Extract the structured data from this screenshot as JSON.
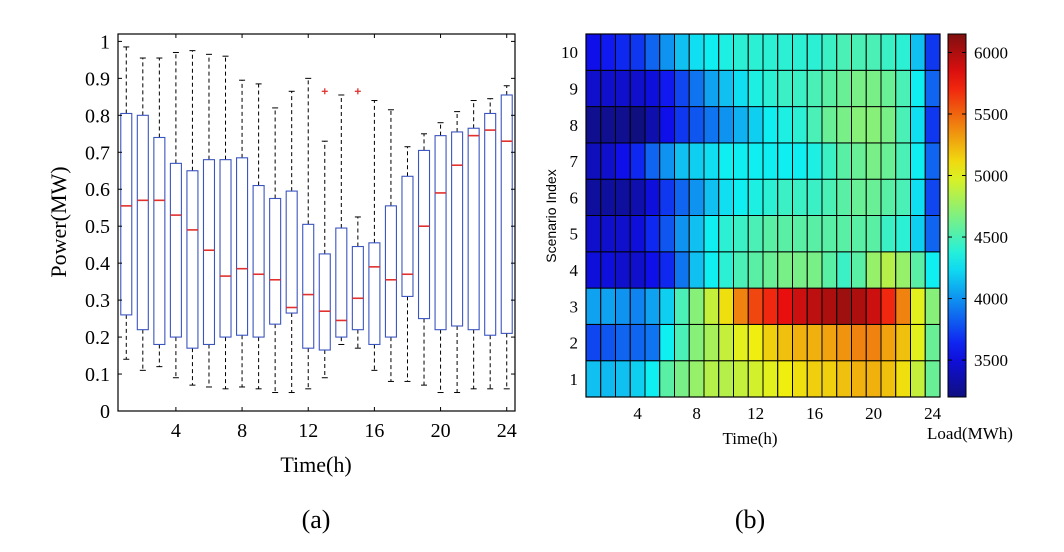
{
  "panels": {
    "a_label": "(a)",
    "b_label": "(b)"
  },
  "chart_data": [
    {
      "type": "box",
      "xlabel": "Time(h)",
      "ylabel": "Power(MW)",
      "xlim": [
        0.5,
        24.5
      ],
      "ylim": [
        0,
        1.02
      ],
      "xticks": [
        4,
        8,
        12,
        16,
        20,
        24
      ],
      "yticks": [
        0,
        0.1,
        0.2,
        0.3,
        0.4,
        0.5,
        0.6,
        0.7,
        0.8,
        0.9,
        1
      ],
      "ytick_labels": [
        "0",
        "0.1",
        "0.2",
        "0.3",
        "0.4",
        "0.5",
        "0.6",
        "0.7",
        "0.8",
        "0.9",
        "1"
      ],
      "box_color": "#3b55c0",
      "median_color": "#e0312f",
      "outlier_color": "#e0312f",
      "boxes": [
        {
          "x": 1,
          "whislo": 0.14,
          "q1": 0.26,
          "med": 0.555,
          "q3": 0.805,
          "whishi": 0.985
        },
        {
          "x": 2,
          "whislo": 0.11,
          "q1": 0.22,
          "med": 0.57,
          "q3": 0.8,
          "whishi": 0.955
        },
        {
          "x": 3,
          "whislo": 0.12,
          "q1": 0.18,
          "med": 0.57,
          "q3": 0.74,
          "whishi": 0.955
        },
        {
          "x": 4,
          "whislo": 0.09,
          "q1": 0.2,
          "med": 0.53,
          "q3": 0.67,
          "whishi": 0.97
        },
        {
          "x": 5,
          "whislo": 0.07,
          "q1": 0.17,
          "med": 0.49,
          "q3": 0.65,
          "whishi": 0.975
        },
        {
          "x": 6,
          "whislo": 0.065,
          "q1": 0.18,
          "med": 0.435,
          "q3": 0.68,
          "whishi": 0.965
        },
        {
          "x": 7,
          "whislo": 0.06,
          "q1": 0.2,
          "med": 0.365,
          "q3": 0.68,
          "whishi": 0.96
        },
        {
          "x": 8,
          "whislo": 0.065,
          "q1": 0.205,
          "med": 0.385,
          "q3": 0.685,
          "whishi": 0.895
        },
        {
          "x": 9,
          "whislo": 0.06,
          "q1": 0.2,
          "med": 0.37,
          "q3": 0.61,
          "whishi": 0.885
        },
        {
          "x": 10,
          "whislo": 0.05,
          "q1": 0.235,
          "med": 0.355,
          "q3": 0.575,
          "whishi": 0.82
        },
        {
          "x": 11,
          "whislo": 0.05,
          "q1": 0.265,
          "med": 0.28,
          "q3": 0.595,
          "whishi": 0.865
        },
        {
          "x": 12,
          "whislo": 0.06,
          "q1": 0.17,
          "med": 0.315,
          "q3": 0.505,
          "whishi": 0.9
        },
        {
          "x": 13,
          "whislo": 0.09,
          "q1": 0.165,
          "med": 0.27,
          "q3": 0.425,
          "whishi": 0.73,
          "outliers": [
            0.865
          ]
        },
        {
          "x": 14,
          "whislo": 0.18,
          "q1": 0.2,
          "med": 0.245,
          "q3": 0.495,
          "whishi": 0.855
        },
        {
          "x": 15,
          "whislo": 0.17,
          "q1": 0.22,
          "med": 0.305,
          "q3": 0.445,
          "whishi": 0.525,
          "outliers": [
            0.865
          ]
        },
        {
          "x": 16,
          "whislo": 0.11,
          "q1": 0.18,
          "med": 0.39,
          "q3": 0.455,
          "whishi": 0.84
        },
        {
          "x": 17,
          "whislo": 0.08,
          "q1": 0.2,
          "med": 0.355,
          "q3": 0.555,
          "whishi": 0.815
        },
        {
          "x": 18,
          "whislo": 0.08,
          "q1": 0.31,
          "med": 0.37,
          "q3": 0.635,
          "whishi": 0.715
        },
        {
          "x": 19,
          "whislo": 0.07,
          "q1": 0.25,
          "med": 0.5,
          "q3": 0.705,
          "whishi": 0.75
        },
        {
          "x": 20,
          "whislo": 0.05,
          "q1": 0.22,
          "med": 0.59,
          "q3": 0.745,
          "whishi": 0.78
        },
        {
          "x": 21,
          "whislo": 0.05,
          "q1": 0.23,
          "med": 0.665,
          "q3": 0.755,
          "whishi": 0.81
        },
        {
          "x": 22,
          "whislo": 0.06,
          "q1": 0.22,
          "med": 0.745,
          "q3": 0.765,
          "whishi": 0.84
        },
        {
          "x": 23,
          "whislo": 0.06,
          "q1": 0.205,
          "med": 0.76,
          "q3": 0.805,
          "whishi": 0.845
        },
        {
          "x": 24,
          "whislo": 0.06,
          "q1": 0.21,
          "med": 0.73,
          "q3": 0.855,
          "whishi": 0.88
        }
      ]
    },
    {
      "type": "heatmap",
      "xlabel": "Time(h)",
      "ylabel": "Scenario Index",
      "colorbar_label": "Load(MWh)",
      "xticks": [
        4,
        8,
        12,
        16,
        20,
        24
      ],
      "yticks": [
        1,
        2,
        3,
        4,
        5,
        6,
        7,
        8,
        9,
        10
      ],
      "colorbar_ticks": [
        3500,
        4000,
        4500,
        5000,
        5500,
        6000
      ],
      "vmin": 3200,
      "vmax": 6150,
      "colormap": "jet",
      "x": [
        1,
        2,
        3,
        4,
        5,
        6,
        7,
        8,
        9,
        10,
        11,
        12,
        13,
        14,
        15,
        16,
        17,
        18,
        19,
        20,
        21,
        22,
        23,
        24
      ],
      "rows": [
        {
          "scenario": 1,
          "values": [
            4150,
            4130,
            4150,
            4200,
            4300,
            4550,
            4650,
            4750,
            4850,
            4850,
            4900,
            4950,
            5000,
            5050,
            5100,
            5150,
            5150,
            5200,
            5250,
            5250,
            5200,
            5100,
            4900,
            4600
          ]
        },
        {
          "scenario": 2,
          "values": [
            3750,
            3800,
            3850,
            3850,
            3900,
            4300,
            4500,
            4700,
            4800,
            4900,
            5000,
            5050,
            5150,
            5200,
            5250,
            5250,
            5300,
            5350,
            5400,
            5400,
            5300,
            5200,
            5000,
            4600
          ]
        },
        {
          "scenario": 3,
          "values": [
            4050,
            4050,
            4000,
            3950,
            4050,
            4200,
            4500,
            4700,
            4900,
            5100,
            5400,
            5600,
            5700,
            5800,
            5900,
            5950,
            6000,
            6050,
            6000,
            5900,
            5700,
            5400,
            5000,
            4700
          ]
        },
        {
          "scenario": 4,
          "values": [
            3500,
            3500,
            3450,
            3450,
            3550,
            3650,
            3900,
            4150,
            4300,
            4400,
            4500,
            4550,
            4600,
            4650,
            4650,
            4650,
            4550,
            4450,
            4550,
            4750,
            4850,
            4750,
            4550,
            4300
          ]
        },
        {
          "scenario": 5,
          "values": [
            3450,
            3450,
            3450,
            3500,
            3650,
            3800,
            4000,
            4150,
            4300,
            4400,
            4450,
            4500,
            4550,
            4550,
            4550,
            4550,
            4550,
            4550,
            4550,
            4550,
            4450,
            4400,
            4200,
            3850
          ]
        },
        {
          "scenario": 6,
          "values": [
            3300,
            3300,
            3300,
            3350,
            3500,
            3700,
            3850,
            4000,
            4150,
            4250,
            4300,
            4350,
            4400,
            4450,
            4450,
            4450,
            4500,
            4550,
            4600,
            4600,
            4550,
            4500,
            4250,
            3750
          ]
        },
        {
          "scenario": 7,
          "values": [
            3400,
            3450,
            3550,
            3650,
            3850,
            4000,
            4150,
            4200,
            4250,
            4300,
            4300,
            4300,
            4300,
            4300,
            4300,
            4350,
            4450,
            4550,
            4600,
            4650,
            4600,
            4500,
            4300,
            3850
          ]
        },
        {
          "scenario": 8,
          "values": [
            3250,
            3250,
            3250,
            3200,
            3350,
            3550,
            3700,
            3800,
            3900,
            4000,
            4100,
            4200,
            4300,
            4350,
            4400,
            4500,
            4600,
            4650,
            4700,
            4700,
            4650,
            4500,
            4250,
            3700
          ]
        },
        {
          "scenario": 9,
          "values": [
            3450,
            3450,
            3450,
            3450,
            3500,
            3600,
            3750,
            3900,
            4050,
            4150,
            4250,
            4350,
            4400,
            4450,
            4450,
            4500,
            4550,
            4600,
            4650,
            4650,
            4600,
            4500,
            4300,
            3850
          ]
        },
        {
          "scenario": 10,
          "values": [
            3550,
            3600,
            3650,
            3700,
            3850,
            4000,
            4150,
            4250,
            4300,
            4350,
            4400,
            4400,
            4400,
            4400,
            4400,
            4400,
            4450,
            4500,
            4500,
            4500,
            4450,
            4400,
            4150,
            3700
          ]
        }
      ]
    }
  ]
}
